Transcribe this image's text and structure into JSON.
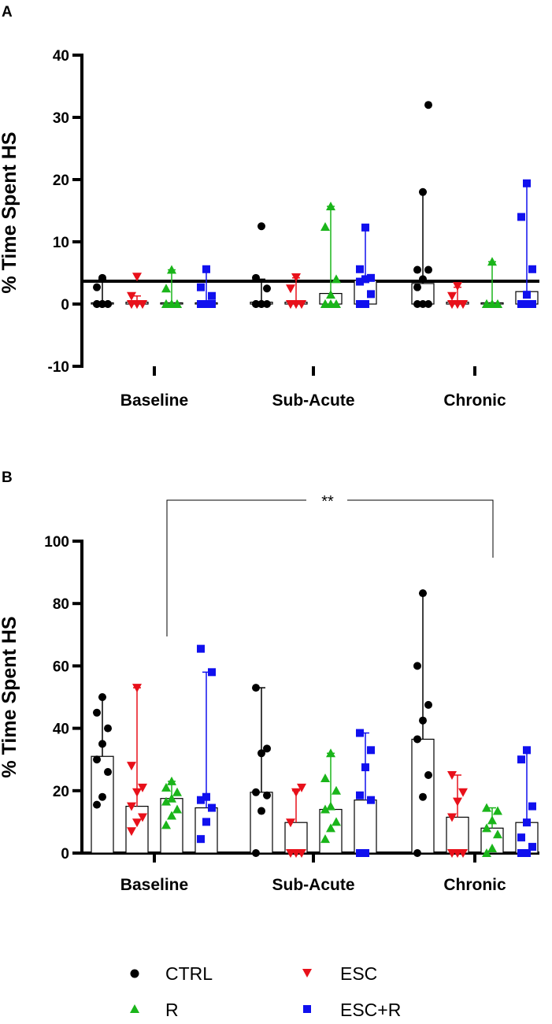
{
  "chart_data": [
    {
      "panel": "A",
      "type": "bar",
      "ylabel": "% Time  Spent HS",
      "ylim": [
        -10,
        40
      ],
      "yticks": [
        40,
        30,
        20,
        10,
        0,
        -10
      ],
      "categories": [
        "Baseline",
        "Sub-Acute",
        "Chronic"
      ],
      "series": [
        {
          "name": "CTRL",
          "color": "#000000",
          "marker": "circle",
          "median": [
            0.2,
            0.3,
            3.3
          ],
          "max": [
            4.0,
            4.0,
            18.0
          ],
          "points": [
            [
              0,
              0,
              0,
              0,
              0,
              0,
              2.7,
              4.2
            ],
            [
              0,
              0,
              0,
              0,
              0,
              2.5,
              4.2,
              12.5
            ],
            [
              0,
              0,
              0,
              2.7,
              4.0,
              5.5,
              5.5,
              18.0,
              32.0
            ]
          ]
        },
        {
          "name": "ESC",
          "color": "#e8101a",
          "marker": "triangle-down",
          "median": [
            0.3,
            0.3,
            0.3
          ],
          "max": [
            1.3,
            4.2,
            2.7
          ],
          "points": [
            [
              0,
              0,
              0,
              0,
              0,
              0,
              1.3,
              4.4
            ],
            [
              0,
              0,
              0,
              0,
              0,
              0,
              2.5,
              4.3
            ],
            [
              0,
              0,
              0,
              0,
              0,
              0,
              1.3,
              2.9
            ]
          ]
        },
        {
          "name": "R",
          "color": "#1ab51a",
          "marker": "triangle-up",
          "median": [
            0.2,
            1.7,
            0.2
          ],
          "max": [
            5.5,
            15.7,
            6.8
          ],
          "points": [
            [
              0,
              0,
              0,
              0,
              0,
              0,
              2.5,
              5.5
            ],
            [
              0,
              0,
              0,
              0,
              1.5,
              4.0,
              12.4,
              15.7
            ],
            [
              0,
              0,
              0,
              0,
              0,
              0,
              0,
              6.8
            ]
          ]
        },
        {
          "name": "ESC+R",
          "color": "#1010ee",
          "marker": "square",
          "median": [
            0.2,
            3.8,
            2.0
          ],
          "max": [
            5.6,
            12.3,
            19.4
          ],
          "points": [
            [
              0,
              0,
              0,
              0,
              0,
              1.3,
              2.7,
              5.6
            ],
            [
              0,
              0,
              1.6,
              3.6,
              4.0,
              4.2,
              5.6,
              12.3
            ],
            [
              0,
              0,
              0,
              0,
              1.5,
              5.6,
              14.0,
              19.4
            ]
          ]
        }
      ]
    },
    {
      "panel": "B",
      "type": "bar",
      "ylabel": "% Time  Spent HS",
      "ylim": [
        0,
        100
      ],
      "yticks": [
        100,
        80,
        60,
        40,
        20,
        0
      ],
      "categories": [
        "Baseline",
        "Sub-Acute",
        "Chronic"
      ],
      "significance": "**",
      "series": [
        {
          "name": "CTRL",
          "color": "#000000",
          "marker": "circle",
          "median": [
            31.0,
            19.5,
            36.5
          ],
          "max": [
            50.0,
            53.0,
            83.3
          ],
          "points": [
            [
              15.5,
              18.0,
              26.0,
              30.0,
              35.0,
              40.0,
              45.0,
              50.0
            ],
            [
              0,
              13.5,
              18.5,
              19.5,
              32.0,
              33.5,
              53.0
            ],
            [
              0,
              18.0,
              25.0,
              36.5,
              42.5,
              47.5,
              60.0,
              83.3
            ]
          ]
        },
        {
          "name": "ESC",
          "color": "#e8101a",
          "marker": "triangle-down",
          "median": [
            15.0,
            9.8,
            11.5
          ],
          "max": [
            53.0,
            20.0,
            25.0
          ],
          "points": [
            [
              7.0,
              9.8,
              11.5,
              15.0,
              19.5,
              21.0,
              28.0,
              53.0
            ],
            [
              0,
              0,
              0,
              9.8,
              19.5,
              21.0
            ],
            [
              0,
              0,
              0,
              11.5,
              16.5,
              19.5,
              25.0
            ]
          ]
        },
        {
          "name": "R",
          "color": "#1ab51a",
          "marker": "triangle-up",
          "median": [
            17.5,
            14.0,
            8.0
          ],
          "max": [
            23.0,
            32.0,
            14.5
          ],
          "points": [
            [
              9.0,
              12.0,
              14.0,
              16.5,
              17.5,
              19.5,
              21.0,
              23.0
            ],
            [
              4.5,
              8.0,
              10.0,
              14.0,
              15.0,
              20.0,
              24.0,
              32.0
            ],
            [
              0,
              1.5,
              6.0,
              8.0,
              10.5,
              13.5,
              14.5
            ]
          ]
        },
        {
          "name": "ESC+R",
          "color": "#1010ee",
          "marker": "square",
          "median": [
            14.5,
            17.0,
            9.8
          ],
          "max": [
            58.0,
            38.5,
            33.0
          ],
          "points": [
            [
              4.5,
              10.0,
              14.5,
              17.0,
              18.0,
              58.0,
              65.5
            ],
            [
              0,
              0,
              17.0,
              18.5,
              27.5,
              33.0,
              38.5
            ],
            [
              0,
              0,
              2.0,
              5.0,
              9.8,
              15.0,
              30.0,
              33.0
            ]
          ]
        }
      ]
    }
  ],
  "legend": [
    "CTRL",
    "ESC",
    "R",
    "ESC+R"
  ]
}
